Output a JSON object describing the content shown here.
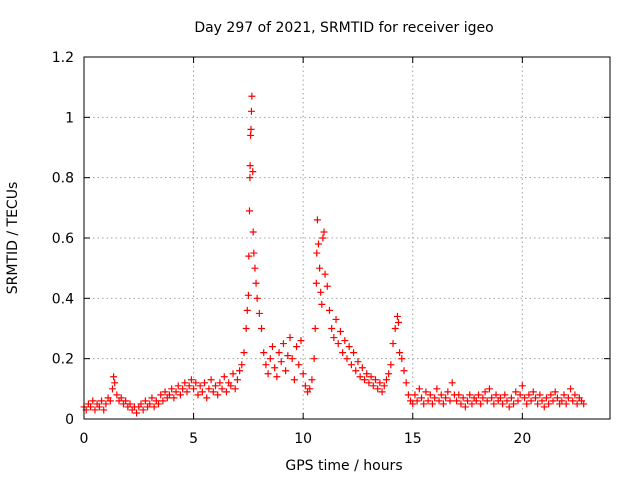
{
  "chart_data": {
    "type": "scatter",
    "title": "Day 297 of 2021, SRMTID for receiver igeo",
    "xlabel": "GPS time / hours",
    "ylabel": "SRMTID / TECUs",
    "xlim": [
      0,
      24
    ],
    "ylim": [
      0,
      1.2
    ],
    "x_ticks": [
      0,
      5,
      10,
      15,
      20
    ],
    "x_tick_labels": [
      "0",
      "5",
      "10",
      "15",
      "20"
    ],
    "y_ticks": [
      0,
      0.2,
      0.4,
      0.6,
      0.8,
      1.0,
      1.2
    ],
    "y_tick_labels": [
      "0",
      "0.2",
      "0.4",
      "0.6",
      "0.8",
      "1",
      "1.2"
    ],
    "grid": true,
    "marker": "+",
    "series": [
      {
        "name": "igeo",
        "color": "#ff0000",
        "points": [
          [
            0.0,
            0.04
          ],
          [
            0.1,
            0.03
          ],
          [
            0.2,
            0.05
          ],
          [
            0.3,
            0.04
          ],
          [
            0.4,
            0.06
          ],
          [
            0.5,
            0.03
          ],
          [
            0.6,
            0.05
          ],
          [
            0.7,
            0.04
          ],
          [
            0.8,
            0.06
          ],
          [
            0.9,
            0.03
          ],
          [
            1.0,
            0.05
          ],
          [
            1.1,
            0.07
          ],
          [
            1.2,
            0.06
          ],
          [
            1.3,
            0.1
          ],
          [
            1.35,
            0.14
          ],
          [
            1.4,
            0.12
          ],
          [
            1.5,
            0.08
          ],
          [
            1.6,
            0.06
          ],
          [
            1.7,
            0.07
          ],
          [
            1.8,
            0.05
          ],
          [
            1.9,
            0.06
          ],
          [
            2.0,
            0.04
          ],
          [
            2.1,
            0.05
          ],
          [
            2.2,
            0.03
          ],
          [
            2.3,
            0.04
          ],
          [
            2.4,
            0.02
          ],
          [
            2.5,
            0.04
          ],
          [
            2.6,
            0.05
          ],
          [
            2.7,
            0.03
          ],
          [
            2.8,
            0.06
          ],
          [
            2.9,
            0.04
          ],
          [
            3.0,
            0.05
          ],
          [
            3.1,
            0.07
          ],
          [
            3.2,
            0.04
          ],
          [
            3.3,
            0.06
          ],
          [
            3.4,
            0.05
          ],
          [
            3.5,
            0.08
          ],
          [
            3.6,
            0.06
          ],
          [
            3.7,
            0.09
          ],
          [
            3.8,
            0.07
          ],
          [
            3.9,
            0.08
          ],
          [
            4.0,
            0.1
          ],
          [
            4.1,
            0.07
          ],
          [
            4.2,
            0.09
          ],
          [
            4.3,
            0.11
          ],
          [
            4.4,
            0.08
          ],
          [
            4.5,
            0.1
          ],
          [
            4.6,
            0.12
          ],
          [
            4.7,
            0.09
          ],
          [
            4.8,
            0.11
          ],
          [
            4.9,
            0.13
          ],
          [
            5.0,
            0.1
          ],
          [
            5.1,
            0.12
          ],
          [
            5.2,
            0.08
          ],
          [
            5.3,
            0.11
          ],
          [
            5.4,
            0.09
          ],
          [
            5.5,
            0.12
          ],
          [
            5.6,
            0.07
          ],
          [
            5.7,
            0.1
          ],
          [
            5.8,
            0.13
          ],
          [
            5.9,
            0.09
          ],
          [
            6.0,
            0.11
          ],
          [
            6.1,
            0.08
          ],
          [
            6.2,
            0.12
          ],
          [
            6.3,
            0.1
          ],
          [
            6.4,
            0.14
          ],
          [
            6.5,
            0.09
          ],
          [
            6.6,
            0.12
          ],
          [
            6.7,
            0.11
          ],
          [
            6.8,
            0.15
          ],
          [
            6.9,
            0.1
          ],
          [
            7.0,
            0.13
          ],
          [
            7.1,
            0.16
          ],
          [
            7.2,
            0.18
          ],
          [
            7.3,
            0.22
          ],
          [
            7.4,
            0.3
          ],
          [
            7.45,
            0.36
          ],
          [
            7.5,
            0.41
          ],
          [
            7.52,
            0.54
          ],
          [
            7.55,
            0.69
          ],
          [
            7.57,
            0.8
          ],
          [
            7.58,
            0.84
          ],
          [
            7.6,
            0.94
          ],
          [
            7.62,
            0.96
          ],
          [
            7.64,
            1.02
          ],
          [
            7.66,
            1.07
          ],
          [
            7.7,
            0.82
          ],
          [
            7.72,
            0.62
          ],
          [
            7.75,
            0.55
          ],
          [
            7.8,
            0.5
          ],
          [
            7.85,
            0.45
          ],
          [
            7.9,
            0.4
          ],
          [
            8.0,
            0.35
          ],
          [
            8.1,
            0.3
          ],
          [
            8.2,
            0.22
          ],
          [
            8.3,
            0.18
          ],
          [
            8.4,
            0.15
          ],
          [
            8.5,
            0.2
          ],
          [
            8.6,
            0.24
          ],
          [
            8.7,
            0.17
          ],
          [
            8.8,
            0.14
          ],
          [
            8.9,
            0.22
          ],
          [
            9.0,
            0.19
          ],
          [
            9.1,
            0.25
          ],
          [
            9.2,
            0.16
          ],
          [
            9.3,
            0.21
          ],
          [
            9.4,
            0.27
          ],
          [
            9.5,
            0.2
          ],
          [
            9.6,
            0.13
          ],
          [
            9.7,
            0.24
          ],
          [
            9.8,
            0.18
          ],
          [
            9.9,
            0.26
          ],
          [
            10.0,
            0.15
          ],
          [
            10.1,
            0.11
          ],
          [
            10.2,
            0.09
          ],
          [
            10.3,
            0.1
          ],
          [
            10.4,
            0.13
          ],
          [
            10.5,
            0.2
          ],
          [
            10.55,
            0.3
          ],
          [
            10.6,
            0.45
          ],
          [
            10.62,
            0.55
          ],
          [
            10.65,
            0.66
          ],
          [
            10.7,
            0.58
          ],
          [
            10.75,
            0.5
          ],
          [
            10.8,
            0.42
          ],
          [
            10.85,
            0.38
          ],
          [
            10.9,
            0.6
          ],
          [
            10.95,
            0.62
          ],
          [
            11.0,
            0.48
          ],
          [
            11.1,
            0.44
          ],
          [
            11.2,
            0.36
          ],
          [
            11.3,
            0.3
          ],
          [
            11.4,
            0.27
          ],
          [
            11.5,
            0.33
          ],
          [
            11.6,
            0.25
          ],
          [
            11.7,
            0.29
          ],
          [
            11.8,
            0.22
          ],
          [
            11.9,
            0.26
          ],
          [
            12.0,
            0.2
          ],
          [
            12.1,
            0.24
          ],
          [
            12.2,
            0.18
          ],
          [
            12.3,
            0.22
          ],
          [
            12.4,
            0.16
          ],
          [
            12.5,
            0.19
          ],
          [
            12.6,
            0.14
          ],
          [
            12.7,
            0.17
          ],
          [
            12.8,
            0.13
          ],
          [
            12.9,
            0.15
          ],
          [
            13.0,
            0.12
          ],
          [
            13.1,
            0.14
          ],
          [
            13.2,
            0.11
          ],
          [
            13.3,
            0.13
          ],
          [
            13.4,
            0.1
          ],
          [
            13.5,
            0.12
          ],
          [
            13.6,
            0.09
          ],
          [
            13.7,
            0.11
          ],
          [
            13.8,
            0.13
          ],
          [
            13.9,
            0.15
          ],
          [
            14.0,
            0.18
          ],
          [
            14.1,
            0.25
          ],
          [
            14.2,
            0.3
          ],
          [
            14.3,
            0.34
          ],
          [
            14.35,
            0.32
          ],
          [
            14.4,
            0.22
          ],
          [
            14.5,
            0.2
          ],
          [
            14.6,
            0.16
          ],
          [
            14.7,
            0.12
          ],
          [
            14.8,
            0.08
          ],
          [
            14.9,
            0.06
          ],
          [
            15.0,
            0.05
          ],
          [
            15.1,
            0.08
          ],
          [
            15.2,
            0.06
          ],
          [
            15.3,
            0.1
          ],
          [
            15.4,
            0.07
          ],
          [
            15.5,
            0.05
          ],
          [
            15.6,
            0.09
          ],
          [
            15.7,
            0.06
          ],
          [
            15.8,
            0.08
          ],
          [
            15.9,
            0.05
          ],
          [
            16.0,
            0.07
          ],
          [
            16.1,
            0.1
          ],
          [
            16.2,
            0.06
          ],
          [
            16.3,
            0.08
          ],
          [
            16.4,
            0.05
          ],
          [
            16.5,
            0.07
          ],
          [
            16.6,
            0.09
          ],
          [
            16.7,
            0.06
          ],
          [
            16.8,
            0.12
          ],
          [
            16.9,
            0.08
          ],
          [
            17.0,
            0.06
          ],
          [
            17.1,
            0.08
          ],
          [
            17.2,
            0.05
          ],
          [
            17.3,
            0.07
          ],
          [
            17.4,
            0.04
          ],
          [
            17.5,
            0.06
          ],
          [
            17.6,
            0.08
          ],
          [
            17.7,
            0.05
          ],
          [
            17.8,
            0.07
          ],
          [
            17.9,
            0.06
          ],
          [
            18.0,
            0.08
          ],
          [
            18.1,
            0.05
          ],
          [
            18.2,
            0.07
          ],
          [
            18.3,
            0.09
          ],
          [
            18.4,
            0.06
          ],
          [
            18.5,
            0.1
          ],
          [
            18.6,
            0.07
          ],
          [
            18.7,
            0.05
          ],
          [
            18.8,
            0.08
          ],
          [
            18.9,
            0.06
          ],
          [
            19.0,
            0.07
          ],
          [
            19.1,
            0.05
          ],
          [
            19.2,
            0.08
          ],
          [
            19.3,
            0.06
          ],
          [
            19.4,
            0.04
          ],
          [
            19.5,
            0.07
          ],
          [
            19.6,
            0.05
          ],
          [
            19.7,
            0.09
          ],
          [
            19.8,
            0.06
          ],
          [
            19.9,
            0.08
          ],
          [
            20.0,
            0.11
          ],
          [
            20.1,
            0.07
          ],
          [
            20.2,
            0.05
          ],
          [
            20.3,
            0.08
          ],
          [
            20.4,
            0.06
          ],
          [
            20.5,
            0.09
          ],
          [
            20.6,
            0.07
          ],
          [
            20.7,
            0.05
          ],
          [
            20.8,
            0.08
          ],
          [
            20.9,
            0.06
          ],
          [
            21.0,
            0.04
          ],
          [
            21.1,
            0.07
          ],
          [
            21.2,
            0.05
          ],
          [
            21.3,
            0.08
          ],
          [
            21.4,
            0.06
          ],
          [
            21.5,
            0.09
          ],
          [
            21.6,
            0.07
          ],
          [
            21.7,
            0.05
          ],
          [
            21.8,
            0.06
          ],
          [
            21.9,
            0.08
          ],
          [
            22.0,
            0.05
          ],
          [
            22.1,
            0.07
          ],
          [
            22.2,
            0.1
          ],
          [
            22.3,
            0.06
          ],
          [
            22.4,
            0.08
          ],
          [
            22.5,
            0.05
          ],
          [
            22.6,
            0.07
          ],
          [
            22.7,
            0.06
          ],
          [
            22.8,
            0.05
          ]
        ]
      }
    ]
  }
}
